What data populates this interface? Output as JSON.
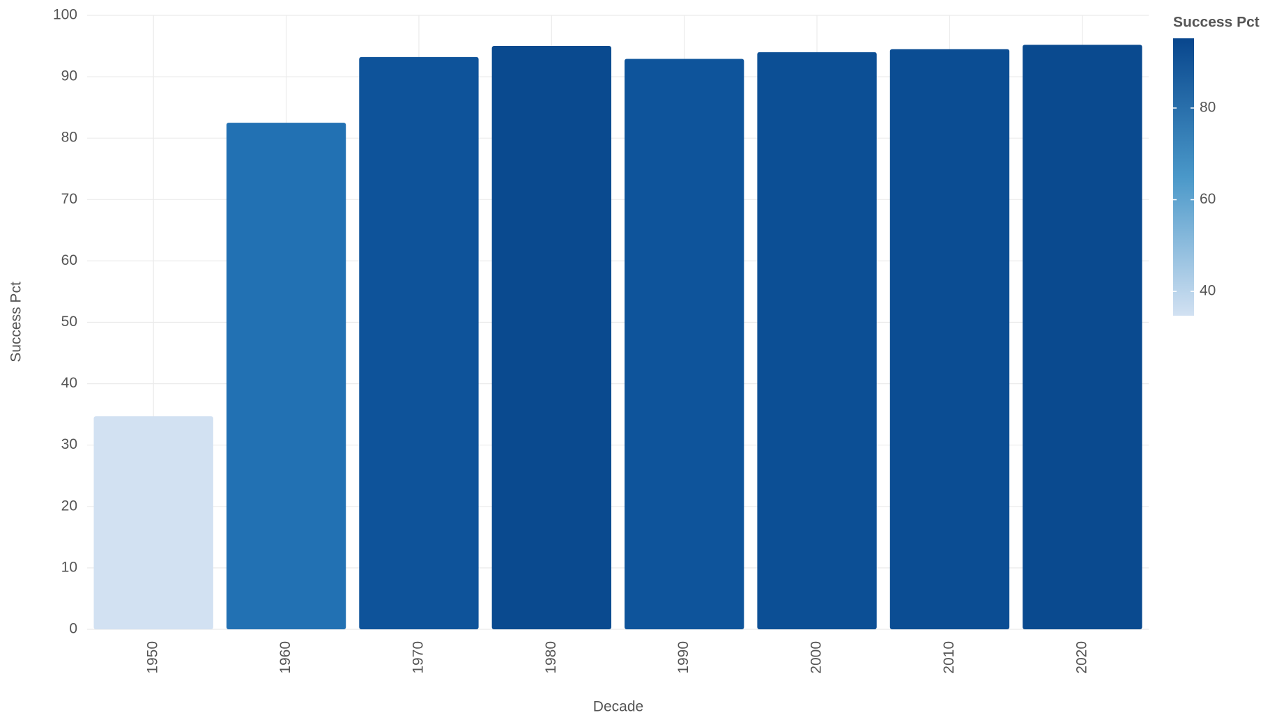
{
  "chart_data": {
    "type": "bar",
    "x_label": "Decade",
    "y_label": "Success Pct",
    "categories": [
      "1950",
      "1960",
      "1970",
      "1980",
      "1990",
      "2000",
      "2010",
      "2020"
    ],
    "values": [
      34.7,
      82.5,
      93.2,
      95.0,
      92.9,
      94.0,
      94.5,
      95.2
    ],
    "colors": [
      "#d2e1f2",
      "#2271b3",
      "#0e539a",
      "#0a4a8f",
      "#0e549b",
      "#0c4f95",
      "#0b4d93",
      "#0a4a8f"
    ],
    "ylim": [
      0,
      100
    ],
    "yticks": [
      0,
      10,
      20,
      30,
      40,
      50,
      60,
      70,
      80,
      90,
      100
    ],
    "grid": true,
    "colorbar": {
      "title": "Success Pct",
      "lim": [
        34.7,
        95.2
      ],
      "ticks": [
        40,
        60,
        80
      ],
      "low_color": "#d2e1f2",
      "mid_color": "#4a98c9",
      "high_color": "#08468d"
    }
  }
}
